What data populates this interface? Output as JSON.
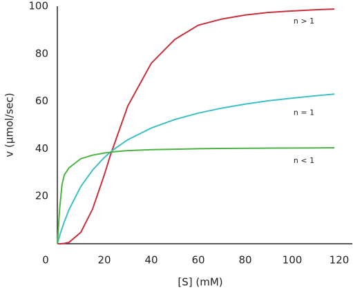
{
  "chart_data": {
    "type": "line",
    "x_label": "[S] (mM)",
    "y_label": "v (μmol/sec)",
    "x": [
      0,
      1,
      2,
      3,
      5,
      10,
      15,
      20,
      22.5,
      25,
      30,
      40,
      50,
      60,
      70,
      80,
      90,
      100,
      110,
      118
    ],
    "series": [
      {
        "name": "n > 1",
        "color": "#c62f3b",
        "values": [
          0,
          0.005,
          0.04,
          0.14,
          0.6,
          4.8,
          14.6,
          29,
          37,
          44,
          58,
          76,
          86,
          92,
          94.6,
          96.3,
          97.4,
          98,
          98.5,
          98.8
        ]
      },
      {
        "name": "n = 1",
        "color": "#3cbfc4",
        "values": [
          0,
          3.4,
          6.5,
          9.3,
          14.4,
          24.1,
          31,
          36.3,
          38.5,
          40.4,
          43.8,
          48.7,
          52.3,
          55,
          57.1,
          58.8,
          60.2,
          61.3,
          62.3,
          63
        ]
      },
      {
        "name": "n < 1",
        "color": "#4bb344",
        "values": [
          0,
          15,
          25,
          29,
          32,
          35.8,
          37.3,
          38.2,
          38.5,
          38.8,
          39.2,
          39.6,
          39.8,
          40,
          40.1,
          40.2,
          40.25,
          40.3,
          40.35,
          40.4
        ]
      }
    ],
    "xlim": [
      0,
      120
    ],
    "ylim": [
      0,
      100
    ],
    "xticks": [
      0,
      20,
      40,
      60,
      80,
      100,
      120
    ],
    "yticks": [
      20,
      40,
      60,
      80,
      100
    ],
    "grid": false
  }
}
